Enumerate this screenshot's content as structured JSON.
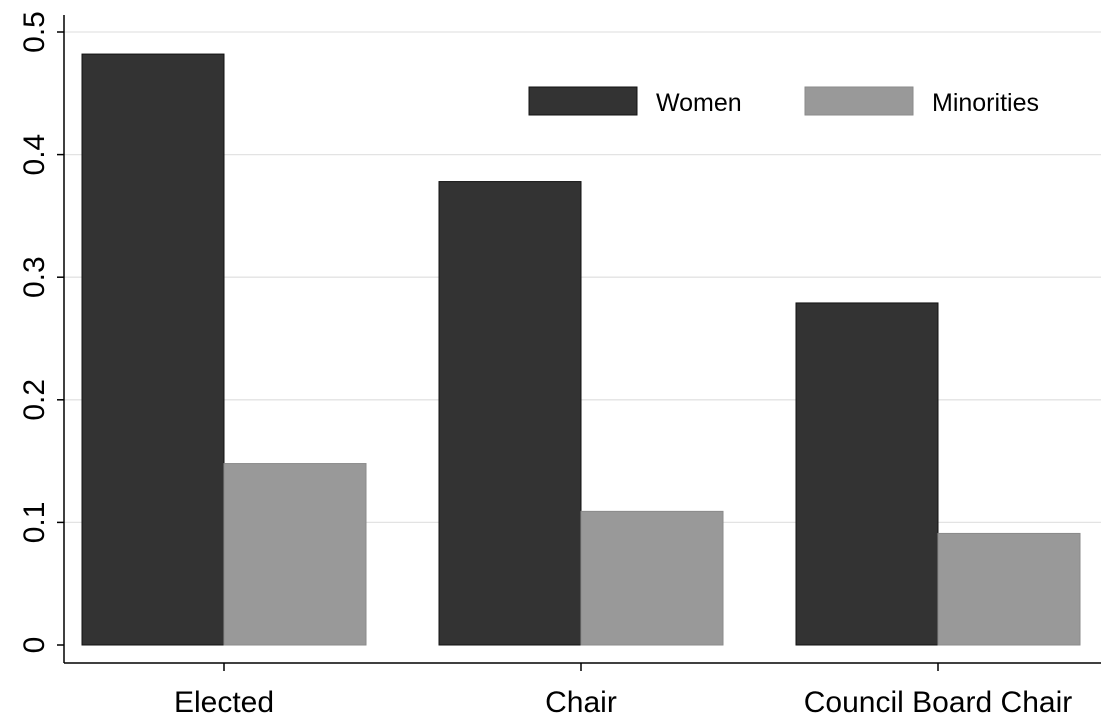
{
  "chart_data": {
    "type": "bar",
    "categories": [
      "Elected",
      "Chair",
      "Council Board Chair"
    ],
    "series": [
      {
        "name": "Women",
        "values": [
          0.482,
          0.378,
          0.279
        ],
        "color": "#333333"
      },
      {
        "name": "Minorities",
        "values": [
          0.148,
          0.109,
          0.091
        ],
        "color": "#999999"
      }
    ],
    "ylim": [
      0,
      0.5
    ],
    "yticks": [
      0,
      0.1,
      0.2,
      0.3,
      0.4,
      0.5
    ],
    "ytick_labels": [
      "0",
      "0.1",
      "0.2",
      "0.3",
      "0.4",
      "0.5"
    ],
    "grid": true,
    "legend_position": "top-right"
  }
}
